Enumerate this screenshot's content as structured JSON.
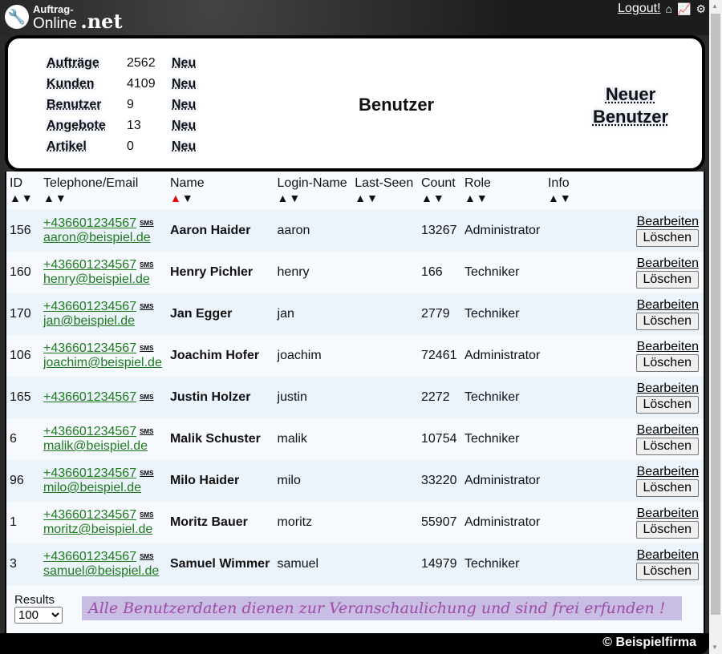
{
  "header": {
    "logo_line1": "Auftrag-",
    "logo_line2": "Online",
    "logo_line3": ".net",
    "logout": "Logout!",
    "icons": [
      "warehouse-icon",
      "stats-icon",
      "gear-icon"
    ]
  },
  "stats": [
    {
      "label": "Aufträge",
      "count": "2562",
      "new": "Neu"
    },
    {
      "label": "Kunden",
      "count": "4109",
      "new": "Neu"
    },
    {
      "label": "Benutzer",
      "count": "9",
      "new": "Neu"
    },
    {
      "label": "Angebote",
      "count": "13",
      "new": "Neu"
    },
    {
      "label": "Artikel",
      "count": "0",
      "new": "Neu"
    }
  ],
  "page_title": "Benutzer",
  "new_user": "Neuer Benutzer",
  "table": {
    "columns": [
      "ID",
      "Telephone/Email",
      "Name",
      "Login-Name",
      "Last-Seen",
      "Count",
      "Role",
      "Info"
    ],
    "sort_active": "Name ascending",
    "sms_label": "SMS",
    "edit_label": "Bearbeiten",
    "delete_label": "Löschen",
    "rows": [
      {
        "id": "156",
        "phone": "+436601234567",
        "email": "aaron@beispiel.de",
        "name": "Aaron Haider",
        "login": "aaron",
        "last_seen": "",
        "count": "13267",
        "role": "Administrator",
        "info": ""
      },
      {
        "id": "160",
        "phone": "+436601234567",
        "email": "henry@beispiel.de",
        "name": "Henry Pichler",
        "login": "henry",
        "last_seen": "",
        "count": "166",
        "role": "Techniker",
        "info": ""
      },
      {
        "id": "170",
        "phone": "+436601234567",
        "email": "jan@beispiel.de",
        "name": "Jan Egger",
        "login": "jan",
        "last_seen": "",
        "count": "2779",
        "role": "Techniker",
        "info": ""
      },
      {
        "id": "106",
        "phone": "+436601234567",
        "email": "joachim@beispiel.de",
        "name": "Joachim Hofer",
        "login": "joachim",
        "last_seen": "",
        "count": "72461",
        "role": "Administrator",
        "info": ""
      },
      {
        "id": "165",
        "phone": "+436601234567",
        "email": "",
        "name": "Justin Holzer",
        "login": "justin",
        "last_seen": "",
        "count": "2272",
        "role": "Techniker",
        "info": ""
      },
      {
        "id": "6",
        "phone": "+436601234567",
        "email": "malik@beispiel.de",
        "name": "Malik Schuster",
        "login": "malik",
        "last_seen": "",
        "count": "10754",
        "role": "Techniker",
        "info": ""
      },
      {
        "id": "96",
        "phone": "+436601234567",
        "email": "milo@beispiel.de",
        "name": "Milo Haider",
        "login": "milo",
        "last_seen": "",
        "count": "33220",
        "role": "Administrator",
        "info": ""
      },
      {
        "id": "1",
        "phone": "+436601234567",
        "email": "moritz@beispiel.de",
        "name": "Moritz Bauer",
        "login": "moritz",
        "last_seen": "",
        "count": "55907",
        "role": "Administrator",
        "info": ""
      },
      {
        "id": "3",
        "phone": "+436601234567",
        "email": "samuel@beispiel.de",
        "name": "Samuel Wimmer",
        "login": "samuel",
        "last_seen": "",
        "count": "14979",
        "role": "Techniker",
        "info": ""
      }
    ]
  },
  "results": {
    "label": "Results",
    "value": "100"
  },
  "notice": "Alle Benutzerdaten dienen zur Veranschaulichung und sind frei erfunden !",
  "footer": "© Beispielfirma"
}
